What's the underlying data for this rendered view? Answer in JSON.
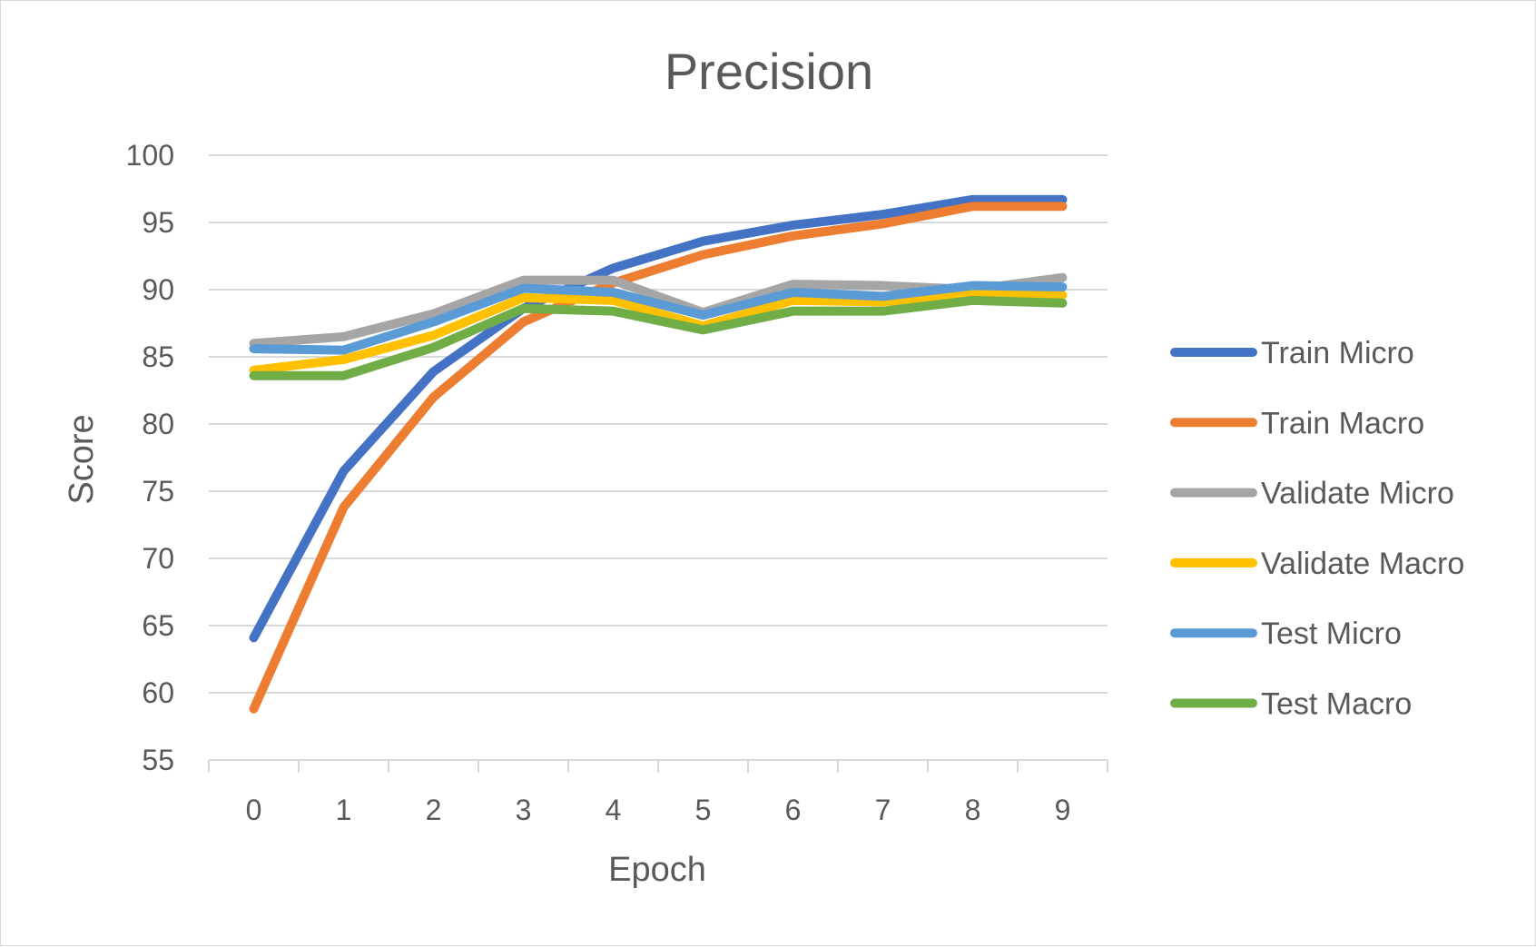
{
  "chart_data": {
    "type": "line",
    "title": "Precision",
    "xlabel": "Epoch",
    "ylabel": "Score",
    "x": [
      0,
      1,
      2,
      3,
      4,
      5,
      6,
      7,
      8,
      9
    ],
    "ylim": [
      55,
      100
    ],
    "yticks": [
      55,
      60,
      65,
      70,
      75,
      80,
      85,
      90,
      95,
      100
    ],
    "grid": true,
    "legend_position": "right",
    "series": [
      {
        "name": "Train Micro",
        "color": "#4472C4",
        "values": [
          64.1,
          76.5,
          83.9,
          88.6,
          91.6,
          93.6,
          94.8,
          95.6,
          96.7,
          96.7
        ]
      },
      {
        "name": "Train Macro",
        "color": "#ED7D31",
        "values": [
          58.8,
          73.8,
          82.0,
          87.6,
          90.5,
          92.6,
          94.0,
          94.9,
          96.2,
          96.2
        ]
      },
      {
        "name": "Validate Micro",
        "color": "#A5A5A5",
        "values": [
          86.0,
          86.5,
          88.2,
          90.7,
          90.7,
          88.3,
          90.4,
          90.3,
          90.0,
          90.9
        ]
      },
      {
        "name": "Validate Macro",
        "color": "#FFC000",
        "values": [
          84.0,
          84.8,
          86.6,
          89.4,
          89.2,
          87.3,
          89.2,
          89.1,
          89.7,
          89.6
        ]
      },
      {
        "name": "Test Micro",
        "color": "#5B9BD5",
        "values": [
          85.6,
          85.5,
          87.6,
          90.1,
          89.8,
          88.1,
          89.8,
          89.5,
          90.3,
          90.2
        ]
      },
      {
        "name": "Test Macro",
        "color": "#70AD47",
        "values": [
          83.6,
          83.6,
          85.7,
          88.6,
          88.4,
          87.0,
          88.4,
          88.4,
          89.2,
          89.0
        ]
      }
    ]
  }
}
